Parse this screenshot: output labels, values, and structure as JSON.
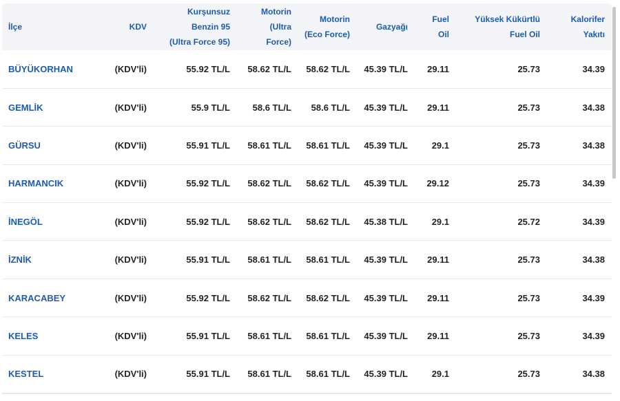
{
  "table": {
    "header": [
      [
        "İlçe"
      ],
      [
        "KDV"
      ],
      [
        "Kurşunsuz",
        "Benzin 95",
        "(Ultra Force 95)"
      ],
      [
        "Motorin",
        "(Ultra",
        "Force)"
      ],
      [
        "Motorin",
        "(Eco Force)"
      ],
      [
        "Gazyağı"
      ],
      [
        "Fuel",
        "Oil"
      ],
      [
        "Yüksek Kükürtlü",
        "Fuel Oil"
      ],
      [
        "Kalorifer",
        "Yakıtı"
      ]
    ],
    "rows": [
      [
        "BÜYÜKORHAN",
        "(KDV'li)",
        "55.92 TL/L",
        "58.62 TL/L",
        "58.62 TL/L",
        "45.39 TL/L",
        "29.11",
        "25.73",
        "34.39"
      ],
      [
        "GEMLİK",
        "(KDV'li)",
        "55.9 TL/L",
        "58.6 TL/L",
        "58.6 TL/L",
        "45.39 TL/L",
        "29.11",
        "25.73",
        "34.38"
      ],
      [
        "GÜRSU",
        "(KDV'li)",
        "55.91 TL/L",
        "58.61 TL/L",
        "58.61 TL/L",
        "45.39 TL/L",
        "29.1",
        "25.73",
        "34.38"
      ],
      [
        "HARMANCIK",
        "(KDV'li)",
        "55.92 TL/L",
        "58.62 TL/L",
        "58.62 TL/L",
        "45.39 TL/L",
        "29.12",
        "25.73",
        "34.39"
      ],
      [
        "İNEGÖL",
        "(KDV'li)",
        "55.92 TL/L",
        "58.62 TL/L",
        "58.62 TL/L",
        "45.38 TL/L",
        "29.1",
        "25.72",
        "34.39"
      ],
      [
        "İZNİK",
        "(KDV'li)",
        "55.91 TL/L",
        "58.61 TL/L",
        "58.61 TL/L",
        "45.39 TL/L",
        "29.11",
        "25.73",
        "34.38"
      ],
      [
        "KARACABEY",
        "(KDV'li)",
        "55.92 TL/L",
        "58.62 TL/L",
        "58.62 TL/L",
        "45.39 TL/L",
        "29.11",
        "25.73",
        "34.39"
      ],
      [
        "KELES",
        "(KDV'li)",
        "55.91 TL/L",
        "58.61 TL/L",
        "58.61 TL/L",
        "45.39 TL/L",
        "29.11",
        "25.73",
        "34.39"
      ],
      [
        "KESTEL",
        "(KDV'li)",
        "55.91 TL/L",
        "58.61 TL/L",
        "58.61 TL/L",
        "45.39 TL/L",
        "29.1",
        "25.73",
        "34.38"
      ]
    ]
  }
}
